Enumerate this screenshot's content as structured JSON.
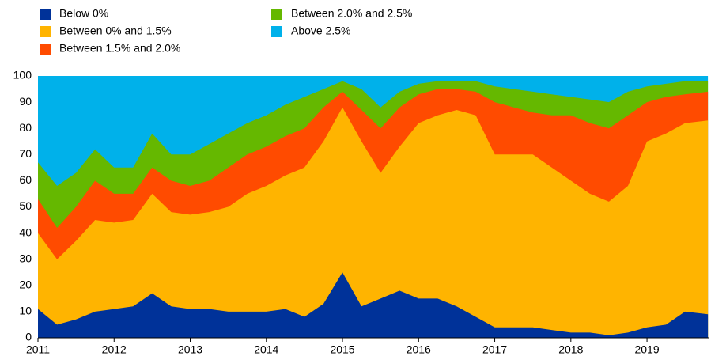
{
  "chart_data": {
    "type": "stacked-area",
    "x": [
      2011,
      2011.25,
      2011.5,
      2011.75,
      2012,
      2012.25,
      2012.5,
      2012.75,
      2013,
      2013.25,
      2013.5,
      2013.75,
      2014,
      2014.25,
      2014.5,
      2014.75,
      2015,
      2015.25,
      2015.5,
      2015.75,
      2016,
      2016.25,
      2016.5,
      2016.75,
      2017,
      2017.25,
      2017.5,
      2017.75,
      2018,
      2018.25,
      2018.5,
      2018.75,
      2019,
      2019.25,
      2019.5,
      2019.8
    ],
    "series": [
      {
        "name": "Below 0%",
        "color": "#003299",
        "values": [
          11,
          5,
          7,
          10,
          11,
          12,
          17,
          12,
          11,
          11,
          10,
          10,
          10,
          11,
          8,
          13,
          25,
          12,
          15,
          18,
          15,
          15,
          12,
          8,
          4,
          4,
          4,
          3,
          2,
          2,
          1,
          2,
          4,
          5,
          10,
          9
        ]
      },
      {
        "name": "Between 0% and 1.5%",
        "color": "#ffb400",
        "values": [
          29,
          25,
          30,
          35,
          33,
          33,
          38,
          36,
          36,
          37,
          40,
          45,
          48,
          51,
          57,
          62,
          63,
          63,
          48,
          55,
          67,
          70,
          75,
          77,
          66,
          66,
          66,
          62,
          58,
          53,
          51,
          56,
          71,
          73,
          72,
          74
        ]
      },
      {
        "name": "Between 1.5% and 2.0%",
        "color": "#ff4b00",
        "values": [
          13,
          12,
          13,
          15,
          11,
          10,
          10,
          12,
          11,
          12,
          15,
          15,
          15,
          15,
          15,
          13,
          6,
          12,
          17,
          15,
          11,
          10,
          8,
          9,
          20,
          18,
          16,
          20,
          25,
          27,
          28,
          27,
          15,
          14,
          11,
          11
        ]
      },
      {
        "name": "Between 2.0% and 2.5%",
        "color": "#65b800",
        "values": [
          14,
          16,
          13,
          12,
          10,
          10,
          13,
          10,
          12,
          14,
          13,
          12,
          12,
          12,
          12,
          7,
          4,
          8,
          8,
          6,
          4,
          3,
          3,
          4,
          6,
          7,
          8,
          8,
          7,
          9,
          10,
          9,
          6,
          5,
          5,
          4
        ]
      },
      {
        "name": "Above 2.5%",
        "color": "#00b1ea",
        "values": [
          33,
          42,
          37,
          28,
          35,
          35,
          22,
          30,
          30,
          26,
          22,
          18,
          15,
          11,
          8,
          5,
          2,
          5,
          12,
          6,
          3,
          2,
          2,
          2,
          4,
          5,
          6,
          7,
          8,
          9,
          10,
          6,
          4,
          3,
          2,
          2
        ]
      }
    ],
    "xlim": [
      2011,
      2019.82
    ],
    "xticks": [
      2011,
      2012,
      2013,
      2014,
      2015,
      2016,
      2017,
      2018,
      2019
    ],
    "ylim": [
      0,
      100
    ],
    "yticks": [
      0,
      10,
      20,
      30,
      40,
      50,
      60,
      70,
      80,
      90,
      100
    ]
  }
}
